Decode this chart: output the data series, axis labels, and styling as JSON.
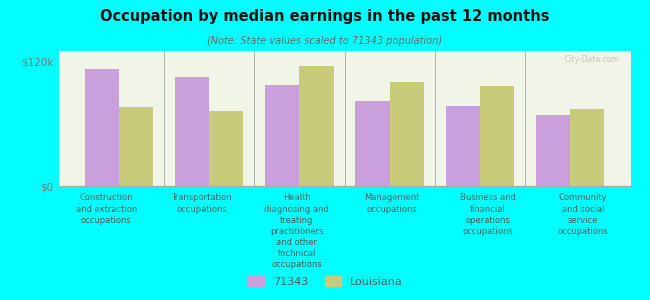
{
  "title": "Occupation by median earnings in the past 12 months",
  "subtitle": "(Note: State values scaled to 71343 population)",
  "categories": [
    "Construction\nand extraction\noccupations",
    "Transportation\noccupations",
    "Health\ndiagnosing and\ntreating\npractitioners\nand other\ntechnical\noccupations",
    "Management\noccupations",
    "Business and\nfinancial\noperations\noccupations",
    "Community\nand social\nservice\noccupations"
  ],
  "values_71343": [
    113000,
    105000,
    97000,
    82000,
    77000,
    68000
  ],
  "values_louisiana": [
    76000,
    72000,
    116000,
    100000,
    96000,
    74000
  ],
  "color_71343": "#c9a0dc",
  "color_louisiana": "#c8cc7a",
  "background_color": "#00ffff",
  "chart_bg_color": "#f0f5e8",
  "ylim": [
    0,
    130000
  ],
  "yticks": [
    0,
    120000
  ],
  "ytick_labels": [
    "$0",
    "$120k"
  ],
  "legend_label_1": "71343",
  "legend_label_2": "Louisiana",
  "bar_width": 0.38
}
